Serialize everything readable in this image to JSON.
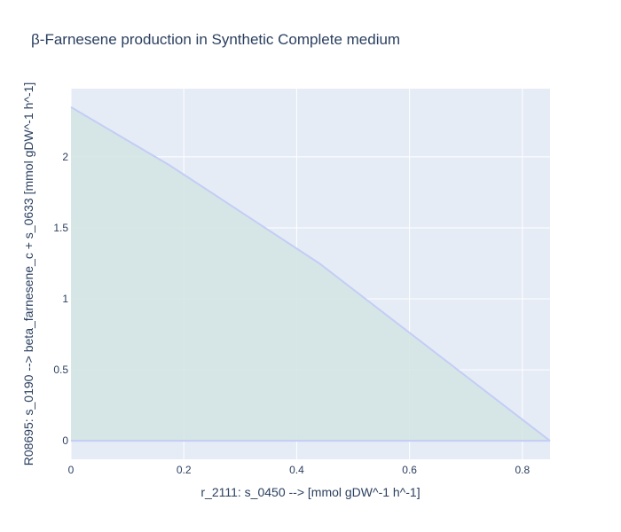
{
  "chart_data": {
    "type": "area",
    "title": "β-Farnesene production in Synthetic Complete medium",
    "xlabel": "r_2111: s_0450 -->  [mmol gDW^-1 h^-1]",
    "ylabel": "R08695: s_0190 --> beta_farnesene_c + s_0633 [mmol gDW^-1 h^-1]",
    "xlim": [
      0,
      0.849
    ],
    "ylim": [
      -0.13,
      2.48
    ],
    "x_ticks": [
      0,
      0.2,
      0.4,
      0.6,
      0.8
    ],
    "x_tick_labels": [
      "0",
      "0.2",
      "0.4",
      "0.6",
      "0.8"
    ],
    "y_ticks": [
      0,
      0.5,
      1,
      1.5,
      2
    ],
    "y_tick_labels": [
      "0",
      "0.5",
      "1",
      "1.5",
      "2"
    ],
    "grid": true,
    "series": [
      {
        "upper": [
          {
            "x": 0.0,
            "y": 2.35
          },
          {
            "x": 0.175,
            "y": 1.94
          },
          {
            "x": 0.44,
            "y": 1.25
          },
          {
            "x": 0.849,
            "y": 0.0
          }
        ],
        "lower": [
          {
            "x": 0.0,
            "y": 0.0
          },
          {
            "x": 0.849,
            "y": 0.0
          }
        ]
      }
    ],
    "colors": {
      "plot_bg": "#e5ecf6",
      "grid": "#ffffff",
      "line": "#c3cdf6",
      "fill": "#d4e6e4",
      "text": "#2a3f5f"
    }
  }
}
